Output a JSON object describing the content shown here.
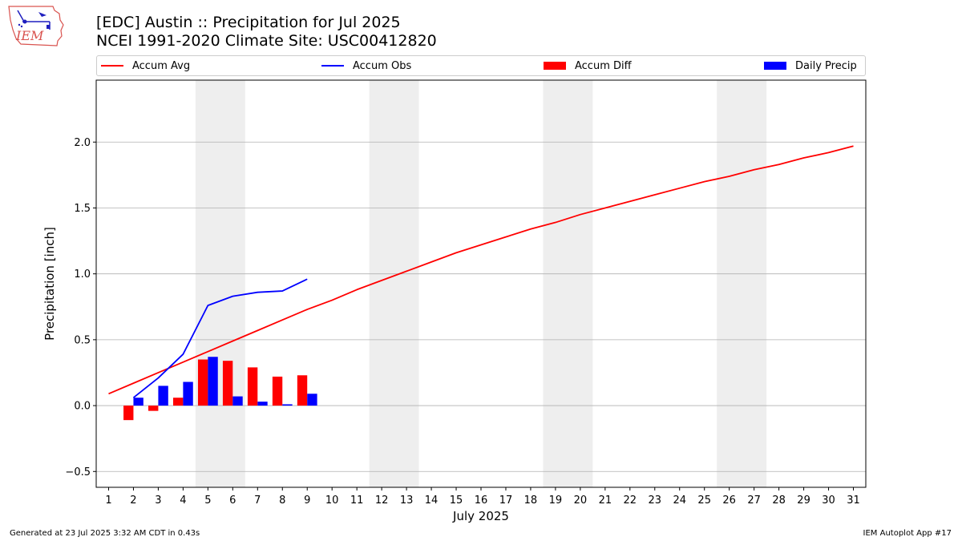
{
  "header": {
    "logo_text": "IEM",
    "title": "[EDC] Austin :: Precipitation for Jul 2025",
    "subtitle": "NCEI 1991-2020 Climate Site: USC00412820"
  },
  "footer": {
    "generated": "Generated at 23 Jul 2025 3:32 AM CDT in 0.43s",
    "app": "IEM Autoplot App #17"
  },
  "colors": {
    "accum_avg": "#ff0000",
    "accum_obs": "#0000ff",
    "accum_diff": "#ff0000",
    "daily_precip": "#0000ff",
    "weekend_shade": "#eeeeee",
    "grid": "#b0b0b0"
  },
  "chart_data": {
    "type": "bar",
    "xlabel": "July 2025",
    "ylabel": "Precipitation [inch]",
    "xlim": [
      0.5,
      31.5
    ],
    "ylim": [
      -0.62,
      2.47
    ],
    "yticks": [
      -0.5,
      0.0,
      0.5,
      1.0,
      1.5,
      2.0
    ],
    "ytick_labels": [
      "−0.5",
      "0.0",
      "0.5",
      "1.0",
      "1.5",
      "2.0"
    ],
    "grid": "horizontal",
    "legend_position": "top",
    "days": [
      1,
      2,
      3,
      4,
      5,
      6,
      7,
      8,
      9,
      10,
      11,
      12,
      13,
      14,
      15,
      16,
      17,
      18,
      19,
      20,
      21,
      22,
      23,
      24,
      25,
      26,
      27,
      28,
      29,
      30,
      31
    ],
    "weekend_ranges": [
      [
        5,
        6
      ],
      [
        12,
        13
      ],
      [
        19,
        20
      ],
      [
        26,
        27
      ]
    ],
    "series": [
      {
        "name": "Accum Avg",
        "type": "line",
        "x": [
          1,
          2,
          3,
          4,
          5,
          6,
          7,
          8,
          9,
          10,
          11,
          12,
          13,
          14,
          15,
          16,
          17,
          18,
          19,
          20,
          21,
          22,
          23,
          24,
          25,
          26,
          27,
          28,
          29,
          30,
          31
        ],
        "values": [
          0.09,
          0.17,
          0.25,
          0.33,
          0.41,
          0.49,
          0.57,
          0.65,
          0.73,
          0.8,
          0.88,
          0.95,
          1.02,
          1.09,
          1.16,
          1.22,
          1.28,
          1.34,
          1.39,
          1.45,
          1.5,
          1.55,
          1.6,
          1.65,
          1.7,
          1.74,
          1.79,
          1.83,
          1.88,
          1.92,
          1.97
        ]
      },
      {
        "name": "Accum Obs",
        "type": "line",
        "x": [
          2,
          3,
          4,
          5,
          6,
          7,
          8,
          9
        ],
        "values": [
          0.06,
          0.21,
          0.39,
          0.76,
          0.83,
          0.86,
          0.87,
          0.96
        ]
      },
      {
        "name": "Accum Diff",
        "type": "bar",
        "x": [
          2,
          3,
          4,
          5,
          6,
          7,
          8,
          9
        ],
        "values": [
          -0.11,
          -0.04,
          0.06,
          0.35,
          0.34,
          0.29,
          0.22,
          0.23
        ]
      },
      {
        "name": "Daily Precip",
        "type": "bar",
        "x": [
          2,
          3,
          4,
          5,
          6,
          7,
          8,
          9
        ],
        "values": [
          0.06,
          0.15,
          0.18,
          0.37,
          0.07,
          0.03,
          0.01,
          0.09
        ]
      }
    ]
  }
}
